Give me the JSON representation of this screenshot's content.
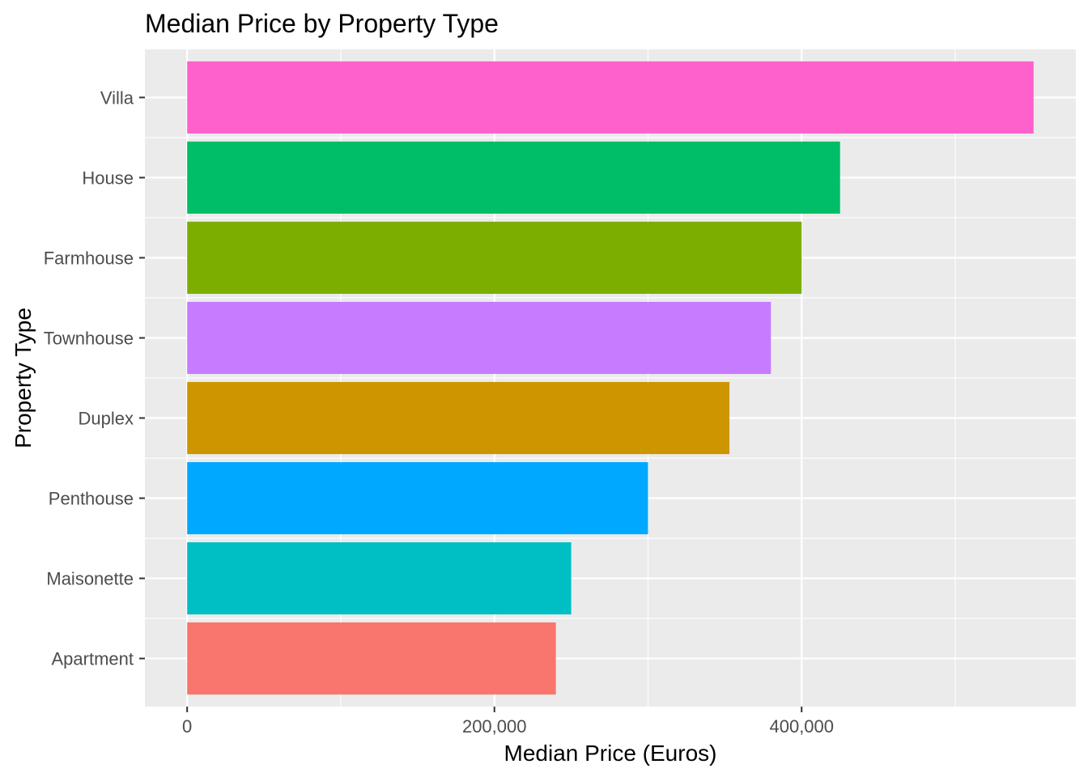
{
  "chart_data": {
    "type": "bar",
    "orientation": "horizontal",
    "title": "Median Price by Property Type",
    "xlabel": "Median Price (Euros)",
    "ylabel": "Property Type",
    "categories": [
      "Apartment",
      "Maisonette",
      "Penthouse",
      "Duplex",
      "Townhouse",
      "Farmhouse",
      "House",
      "Villa"
    ],
    "values": [
      240000,
      250000,
      300000,
      353000,
      380000,
      400000,
      425000,
      551000
    ],
    "colors": [
      "#F8766D",
      "#00BFC4",
      "#00A9FF",
      "#CD9600",
      "#C77CFF",
      "#7CAE00",
      "#00BE67",
      "#FF61CC"
    ],
    "xlim": [
      -27500,
      578500
    ],
    "x_ticks": [
      {
        "value": 0,
        "label": "0"
      },
      {
        "value": 200000,
        "label": "200,000"
      },
      {
        "value": 400000,
        "label": "400,000"
      }
    ],
    "x_minor_ticks": [
      100000,
      300000,
      500000
    ],
    "grid": true,
    "legend": "none",
    "panel_background": "#EBEBEB",
    "grid_color": "#FFFFFF"
  }
}
